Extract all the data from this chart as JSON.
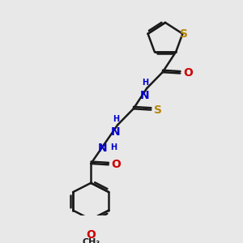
{
  "background_color": "#e8e8e8",
  "bond_color": "#1a1a1a",
  "blue": "#0000cc",
  "red": "#cc0000",
  "gold": "#b8860b",
  "lw": 1.8,
  "xlim": [
    0,
    10
  ],
  "ylim": [
    0,
    10
  ]
}
